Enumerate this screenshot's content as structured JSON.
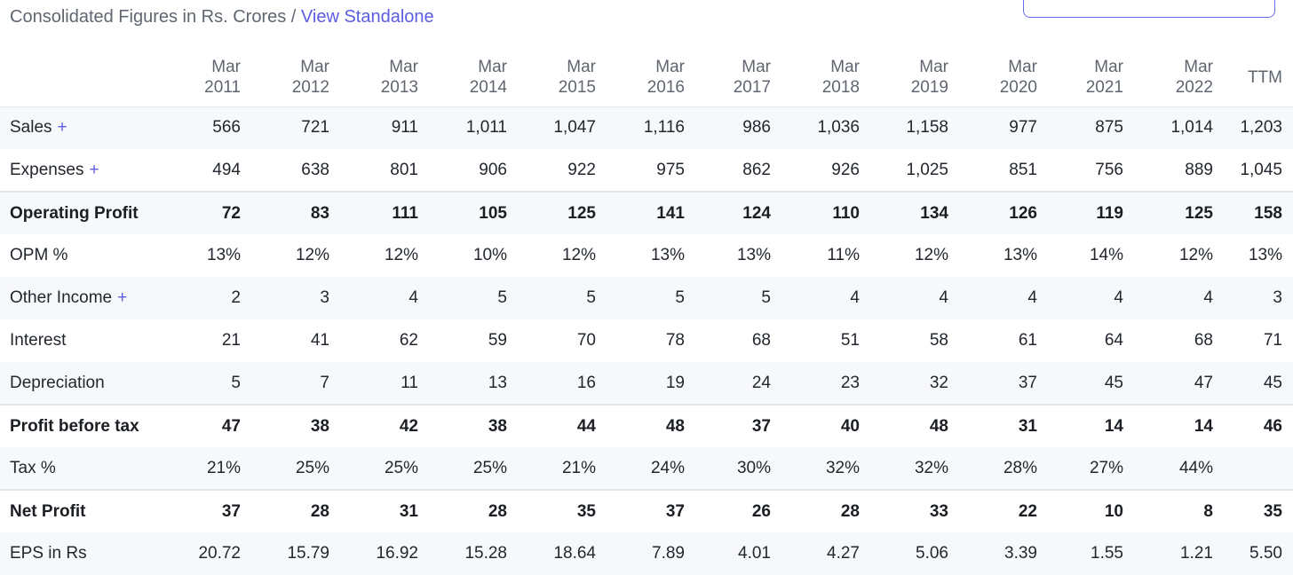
{
  "header": {
    "title": "Consolidated Figures in Rs. Crores",
    "separator": " / ",
    "link": "View Standalone"
  },
  "columns": [
    {
      "top": "Mar",
      "bottom": "2011"
    },
    {
      "top": "Mar",
      "bottom": "2012"
    },
    {
      "top": "Mar",
      "bottom": "2013"
    },
    {
      "top": "Mar",
      "bottom": "2014"
    },
    {
      "top": "Mar",
      "bottom": "2015"
    },
    {
      "top": "Mar",
      "bottom": "2016"
    },
    {
      "top": "Mar",
      "bottom": "2017"
    },
    {
      "top": "Mar",
      "bottom": "2018"
    },
    {
      "top": "Mar",
      "bottom": "2019"
    },
    {
      "top": "Mar",
      "bottom": "2020"
    },
    {
      "top": "Mar",
      "bottom": "2021"
    },
    {
      "top": "Mar",
      "bottom": "2022"
    },
    {
      "top": "TTM",
      "bottom": ""
    }
  ],
  "rows": [
    {
      "label": "Sales",
      "expand": "+",
      "values": [
        "566",
        "721",
        "911",
        "1,011",
        "1,047",
        "1,116",
        "986",
        "1,036",
        "1,158",
        "977",
        "875",
        "1,014",
        "1,203"
      ]
    },
    {
      "label": "Expenses",
      "expand": "+",
      "values": [
        "494",
        "638",
        "801",
        "906",
        "922",
        "975",
        "862",
        "926",
        "1,025",
        "851",
        "756",
        "889",
        "1,045"
      ]
    },
    {
      "label": "Operating Profit",
      "expand": "",
      "values": [
        "72",
        "83",
        "111",
        "105",
        "125",
        "141",
        "124",
        "110",
        "134",
        "126",
        "119",
        "125",
        "158"
      ]
    },
    {
      "label": "OPM %",
      "expand": "",
      "values": [
        "13%",
        "12%",
        "12%",
        "10%",
        "12%",
        "13%",
        "13%",
        "11%",
        "12%",
        "13%",
        "14%",
        "12%",
        "13%"
      ]
    },
    {
      "label": "Other Income",
      "expand": "+",
      "values": [
        "2",
        "3",
        "4",
        "5",
        "5",
        "5",
        "5",
        "4",
        "4",
        "4",
        "4",
        "4",
        "3"
      ]
    },
    {
      "label": "Interest",
      "expand": "",
      "values": [
        "21",
        "41",
        "62",
        "59",
        "70",
        "78",
        "68",
        "51",
        "58",
        "61",
        "64",
        "68",
        "71"
      ]
    },
    {
      "label": "Depreciation",
      "expand": "",
      "values": [
        "5",
        "7",
        "11",
        "13",
        "16",
        "19",
        "24",
        "23",
        "32",
        "37",
        "45",
        "47",
        "45"
      ]
    },
    {
      "label": "Profit before tax",
      "expand": "",
      "values": [
        "47",
        "38",
        "42",
        "38",
        "44",
        "48",
        "37",
        "40",
        "48",
        "31",
        "14",
        "14",
        "46"
      ]
    },
    {
      "label": "Tax %",
      "expand": "",
      "values": [
        "21%",
        "25%",
        "25%",
        "25%",
        "21%",
        "24%",
        "30%",
        "32%",
        "32%",
        "28%",
        "27%",
        "44%",
        ""
      ]
    },
    {
      "label": "Net Profit",
      "expand": "",
      "values": [
        "37",
        "28",
        "31",
        "28",
        "35",
        "37",
        "26",
        "28",
        "33",
        "22",
        "10",
        "8",
        "35"
      ]
    },
    {
      "label": "EPS in Rs",
      "expand": "",
      "values": [
        "20.72",
        "15.79",
        "16.92",
        "15.28",
        "18.64",
        "7.89",
        "4.01",
        "4.27",
        "5.06",
        "3.39",
        "1.55",
        "1.21",
        "5.50"
      ]
    }
  ]
}
